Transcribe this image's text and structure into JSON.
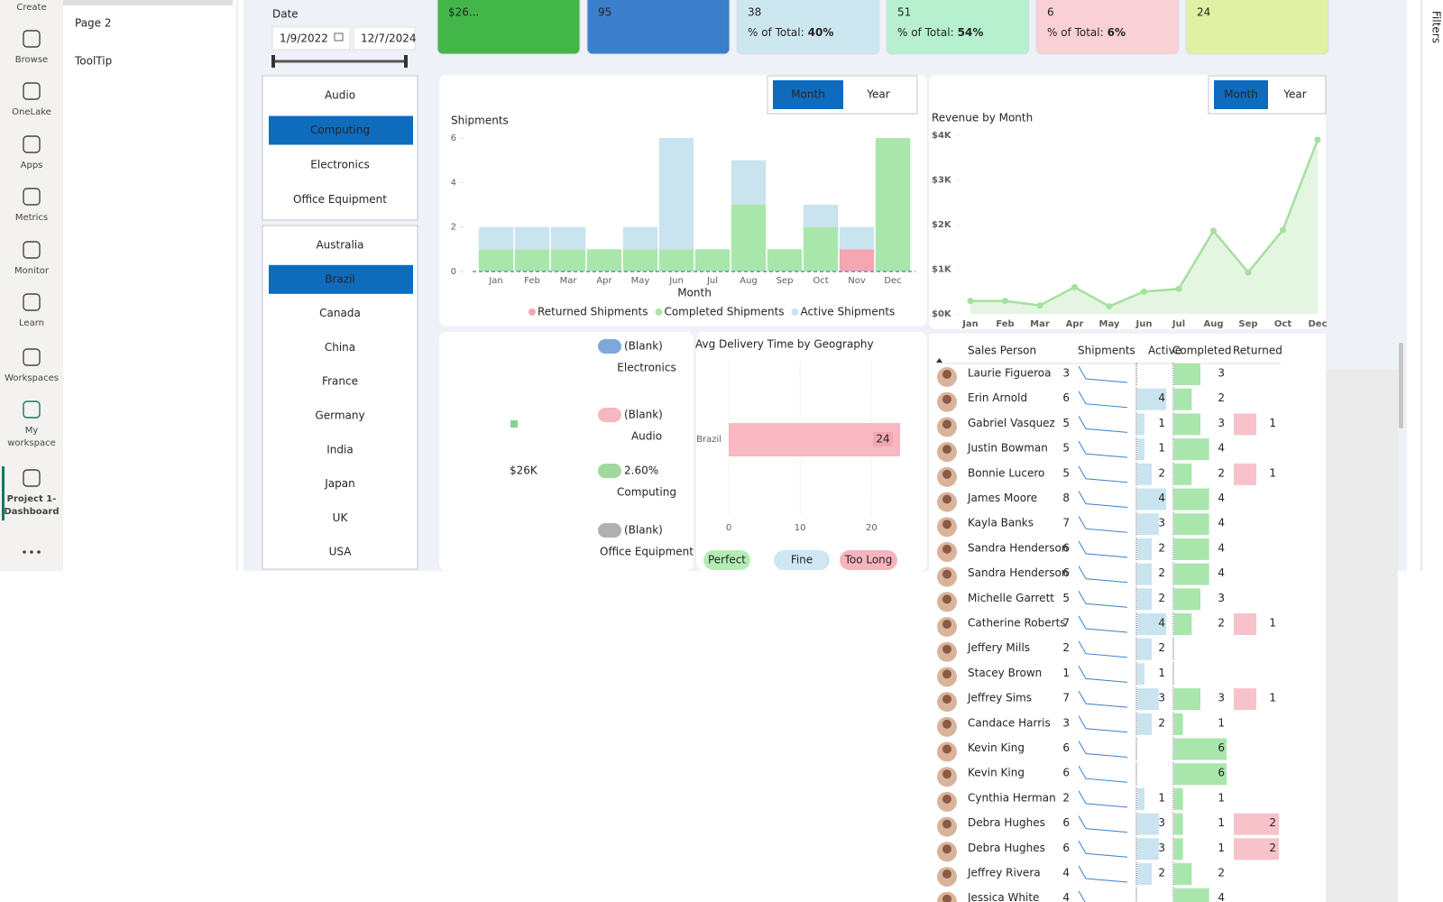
{
  "nav": {
    "items": [
      [
        "Create"
      ],
      [
        "Browse"
      ],
      [
        "OneLake"
      ],
      [
        "Apps"
      ],
      [
        "Metrics"
      ],
      [
        "Monitor"
      ],
      [
        "Learn"
      ],
      [
        "Workspaces"
      ],
      [
        "My",
        "workspace"
      ],
      [
        "Project 1-",
        "Dashboard"
      ]
    ],
    "selected": 9
  },
  "pages": [
    "Page 2",
    "ToolTip"
  ],
  "filters": "Filters",
  "date_slicer": {
    "label": "Date",
    "start": "1/9/2022",
    "end": "12/7/2024"
  },
  "category_slicer": {
    "items": [
      "Audio",
      "Computing",
      "Electronics",
      "Office Equipment"
    ],
    "selected": 1
  },
  "country_slicer": {
    "items": [
      "Australia",
      "Brazil",
      "Canada",
      "China",
      "France",
      "Germany",
      "India",
      "Japan",
      "UK",
      "USA"
    ],
    "selected": 1
  },
  "kpi_cards": [
    {
      "value": "$26...",
      "color": "#43b649"
    },
    {
      "value": 95,
      "color": "#3b7fcb"
    },
    {
      "value": 38,
      "color": "#cde7f1",
      "pct_label": "% of Total:",
      "pct": "40%"
    },
    {
      "value": 51,
      "color": "#b6f0cf",
      "pct_label": "% of Total:",
      "pct": "54%"
    },
    {
      "value": 6,
      "color": "#f8d0d5",
      "pct_label": "% of Total:",
      "pct": "6%"
    },
    {
      "value": 24,
      "color": "#e0f1a3"
    }
  ],
  "summary_card": {
    "value": "$26K",
    "items": [
      {
        "label": "(Blank)",
        "category": "Electronics",
        "color": "#7ea8da"
      },
      {
        "label": "(Blank)",
        "category": "Audio",
        "color": "#f6b7c0"
      },
      {
        "label": "2.60%",
        "category": "Computing",
        "color": "#9fd99b"
      },
      {
        "label": "(Blank)",
        "category": "Office Equipment",
        "color": "#b0b0b0"
      }
    ]
  },
  "chart_data": [
    {
      "type": "bar",
      "stacked": true,
      "title": "Shipments",
      "toggle": [
        "Month",
        "Year"
      ],
      "x_label": "Month",
      "categories": [
        "Jan",
        "Feb",
        "Mar",
        "Apr",
        "May",
        "Jun",
        "Jul",
        "Aug",
        "Sep",
        "Oct",
        "Nov",
        "Dec"
      ],
      "series": [
        {
          "name": "Returned Shipments",
          "color": "#f4a6b1",
          "values": [
            0,
            0,
            0,
            0,
            0,
            0,
            0,
            0,
            0,
            0,
            1,
            0
          ]
        },
        {
          "name": "Completed Shipments",
          "color": "#a9e6ac",
          "values": [
            1,
            1,
            1,
            1,
            1,
            1,
            1,
            3,
            1,
            2,
            0,
            6
          ]
        },
        {
          "name": "Active Shipments",
          "color": "#c9e3ef",
          "values": [
            1,
            1,
            1,
            0,
            1,
            5,
            0,
            2,
            0,
            1,
            1,
            0
          ]
        }
      ],
      "ylim": [
        0,
        6
      ],
      "yticks": [
        0,
        2,
        4,
        6
      ]
    },
    {
      "type": "area",
      "title": "Revenue by Month",
      "toggle": [
        "Month",
        "Year"
      ],
      "categories": [
        "Jan",
        "Feb",
        "Mar",
        "Apr",
        "May",
        "Jun",
        "Jul",
        "Aug",
        "Sep",
        "Oct",
        "Dec"
      ],
      "values": [
        290,
        290,
        190,
        600,
        170,
        500,
        560,
        1860,
        930,
        1880,
        3900
      ],
      "color": "#a6df9f",
      "ylim": [
        0,
        4000
      ],
      "yticks": [
        {
          "value": 0,
          "label": "$0K"
        },
        {
          "value": 1000,
          "label": "$1K"
        },
        {
          "value": 2000,
          "label": "$2K"
        },
        {
          "value": 3000,
          "label": "$3K"
        },
        {
          "value": 4000,
          "label": "$4K"
        }
      ]
    },
    {
      "type": "hbar",
      "title": "Avg Delivery Time by Geography",
      "categories": [
        "Brazil"
      ],
      "values": [
        24
      ],
      "color": "#f8b8c2",
      "xlim": [
        0,
        24
      ],
      "xticks": [
        0,
        10,
        20
      ],
      "legend": [
        {
          "name": "Perfect",
          "color": "#b5ecb6"
        },
        {
          "name": "Fine",
          "color": "#cde7f3"
        },
        {
          "name": "Too Long",
          "color": "#f6b4be"
        }
      ]
    }
  ],
  "table": {
    "columns": [
      "Sales Person",
      "Shipments",
      "Active",
      "Completed",
      "Returned"
    ],
    "rows": [
      [
        "Laurie Figueroa",
        3,
        null,
        3,
        null
      ],
      [
        "Erin Arnold",
        6,
        4,
        2,
        null
      ],
      [
        "Gabriel Vasquez",
        5,
        1,
        3,
        1
      ],
      [
        "Justin Bowman",
        5,
        1,
        4,
        null
      ],
      [
        "Bonnie Lucero",
        5,
        2,
        2,
        1
      ],
      [
        "James Moore",
        8,
        4,
        4,
        null
      ],
      [
        "Kayla Banks",
        7,
        3,
        4,
        null
      ],
      [
        "Sandra Henderson",
        6,
        2,
        4,
        null
      ],
      [
        "Sandra Henderson",
        6,
        2,
        4,
        null
      ],
      [
        "Michelle Garrett",
        5,
        2,
        3,
        null
      ],
      [
        "Catherine Roberts",
        7,
        4,
        2,
        1
      ],
      [
        "Jeffery Mills",
        2,
        2,
        null,
        null
      ],
      [
        "Stacey Brown",
        1,
        1,
        null,
        null
      ],
      [
        "Jeffrey Sims",
        7,
        3,
        3,
        1
      ],
      [
        "Candace Harris",
        3,
        2,
        1,
        null
      ],
      [
        "Kevin King",
        6,
        null,
        6,
        null
      ],
      [
        "Kevin King",
        6,
        null,
        6,
        null
      ],
      [
        "Cynthia Herman",
        2,
        1,
        1,
        null
      ],
      [
        "Debra Hughes",
        6,
        3,
        1,
        2
      ],
      [
        "Debra Hughes",
        6,
        3,
        1,
        2
      ],
      [
        "Jeffrey Rivera",
        4,
        2,
        2,
        null
      ],
      [
        "Jessica White",
        4,
        null,
        4,
        null
      ]
    ]
  }
}
